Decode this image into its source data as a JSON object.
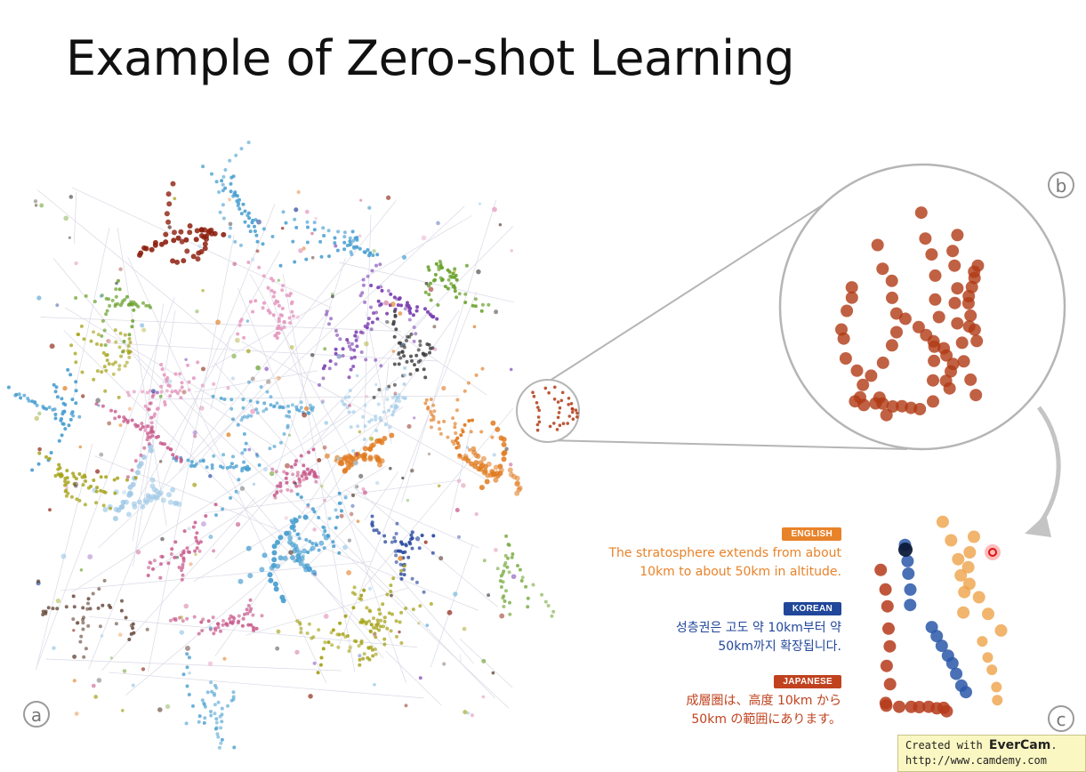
{
  "title": "Example of Zero-shot Learning",
  "panels": {
    "a": "a",
    "b": "b",
    "c": "c"
  },
  "languages": [
    {
      "badge": "ENGLISH",
      "color": "#e8832a",
      "lines": [
        "The stratosphere extends from about",
        "10km to about 50km in altitude."
      ]
    },
    {
      "badge": "KOREAN",
      "color": "#21479a",
      "lines": [
        "성층권은 고도 약 10km부터 약",
        "50km까지 확장됩니다."
      ]
    },
    {
      "badge": "JAPANESE",
      "color": "#c0421e",
      "lines": [
        "成層圏は、高度 10km から",
        "50km の範囲にあります。"
      ]
    }
  ],
  "watermark": {
    "prefix": "Created with ",
    "brand": "EverCam",
    "suffix": ".",
    "url": "http://www.camdemy.com"
  },
  "colors": {
    "cluster_highlight": "#b03a14",
    "english": "#eda24a",
    "korean": "#2a57a8",
    "japanese": "#b53a1a",
    "palette": [
      "#4a9fd0",
      "#e07a1f",
      "#7b3fb0",
      "#6aa12d",
      "#c85b8c",
      "#a6a31a",
      "#5a3a2a",
      "#2b4aa0",
      "#e59ac0",
      "#9ec8e6",
      "#8c1e0c",
      "#3c3c3c"
    ]
  }
}
